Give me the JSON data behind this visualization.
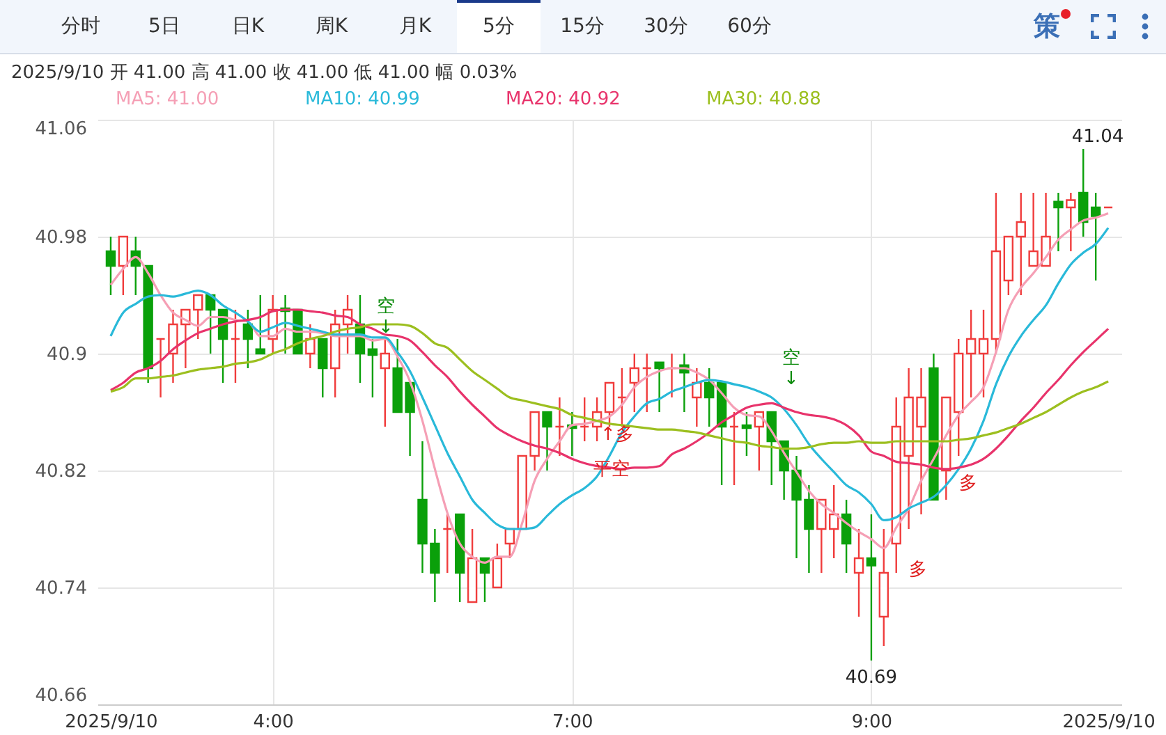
{
  "chart_data": {
    "type": "candlestick",
    "subtitle": "2025/9/10 开 41.00 高 41.00 收 41.00 低 41.00 幅 0.03%",
    "categories": [
      "2025/9/10",
      null,
      null,
      null,
      null,
      null,
      null,
      null,
      null,
      null,
      null,
      null,
      null,
      "4:00",
      null,
      null,
      null,
      null,
      null,
      null,
      null,
      null,
      null,
      null,
      null,
      null,
      null,
      null,
      null,
      null,
      null,
      null,
      null,
      null,
      null,
      null,
      null,
      "7:00",
      null,
      null,
      null,
      null,
      null,
      null,
      null,
      null,
      null,
      null,
      null,
      null,
      null,
      null,
      null,
      null,
      null,
      null,
      null,
      null,
      null,
      null,
      null,
      "9:00",
      null,
      null,
      null,
      null,
      null,
      null,
      null,
      null,
      null,
      null,
      null,
      null,
      null,
      null,
      null,
      null,
      null,
      null,
      "2025/9/10"
    ],
    "ohlc": [
      [
        40.97,
        40.98,
        40.94,
        40.96
      ],
      [
        40.96,
        40.98,
        40.94,
        40.98
      ],
      [
        40.97,
        40.98,
        40.94,
        40.96
      ],
      [
        40.96,
        40.96,
        40.88,
        40.89
      ],
      [
        40.91,
        40.91,
        40.87,
        40.91
      ],
      [
        40.9,
        40.93,
        40.88,
        40.92
      ],
      [
        40.92,
        40.93,
        40.89,
        40.93
      ],
      [
        40.93,
        40.94,
        40.91,
        40.94
      ],
      [
        40.94,
        40.94,
        40.9,
        40.93
      ],
      [
        40.93,
        40.93,
        40.88,
        40.91
      ],
      [
        40.91,
        40.93,
        40.88,
        40.91
      ],
      [
        40.92,
        40.93,
        40.89,
        40.91
      ],
      [
        40.903,
        40.94,
        40.9,
        40.9
      ],
      [
        40.91,
        40.94,
        40.9,
        40.93
      ],
      [
        40.931,
        40.94,
        40.9,
        40.929
      ],
      [
        40.93,
        40.93,
        40.9,
        40.9
      ],
      [
        40.9,
        40.92,
        40.89,
        40.91
      ],
      [
        40.91,
        40.91,
        40.87,
        40.89
      ],
      [
        40.89,
        40.93,
        40.87,
        40.92
      ],
      [
        40.92,
        40.94,
        40.9,
        40.93
      ],
      [
        40.92,
        40.94,
        40.88,
        40.9
      ],
      [
        40.903,
        40.91,
        40.87,
        40.899
      ],
      [
        40.89,
        40.91,
        40.85,
        40.9
      ],
      [
        40.89,
        40.91,
        40.86,
        40.86
      ],
      [
        40.88,
        40.88,
        40.83,
        40.86
      ],
      [
        40.8,
        40.84,
        40.75,
        40.77
      ],
      [
        40.77,
        40.78,
        40.73,
        40.75
      ],
      [
        40.78,
        40.79,
        40.75,
        40.78
      ],
      [
        40.79,
        40.79,
        40.73,
        40.75
      ],
      [
        40.73,
        40.78,
        40.73,
        40.76
      ],
      [
        40.76,
        40.76,
        40.73,
        40.75
      ],
      [
        40.74,
        40.77,
        40.74,
        40.76
      ],
      [
        40.77,
        40.78,
        40.76,
        40.78
      ],
      [
        40.78,
        40.83,
        40.78,
        40.83
      ],
      [
        40.83,
        40.86,
        40.82,
        40.86
      ],
      [
        40.86,
        40.86,
        40.82,
        40.85
      ],
      [
        40.85,
        40.87,
        40.83,
        40.85
      ],
      [
        40.851,
        40.86,
        40.83,
        40.849
      ],
      [
        40.85,
        40.87,
        40.84,
        40.85
      ],
      [
        40.85,
        40.87,
        40.84,
        40.86
      ],
      [
        40.86,
        40.88,
        40.85,
        40.88
      ],
      [
        40.87,
        40.89,
        40.85,
        40.87
      ],
      [
        40.88,
        40.9,
        40.86,
        40.89
      ],
      [
        40.89,
        40.9,
        40.86,
        40.89
      ],
      [
        40.894,
        40.894,
        40.86,
        40.89
      ],
      [
        40.89,
        40.9,
        40.87,
        40.89
      ],
      [
        40.892,
        40.9,
        40.86,
        40.887
      ],
      [
        40.87,
        40.89,
        40.85,
        40.88
      ],
      [
        40.88,
        40.89,
        40.85,
        40.87
      ],
      [
        40.88,
        40.88,
        40.81,
        40.85
      ],
      [
        40.85,
        40.86,
        40.81,
        40.85
      ],
      [
        40.851,
        40.86,
        40.83,
        40.849
      ],
      [
        40.85,
        40.86,
        40.82,
        40.86
      ],
      [
        40.86,
        40.86,
        40.81,
        40.84
      ],
      [
        40.84,
        40.84,
        40.8,
        40.82
      ],
      [
        40.82,
        40.83,
        40.76,
        40.8
      ],
      [
        40.8,
        40.81,
        40.75,
        40.78
      ],
      [
        40.78,
        40.8,
        40.75,
        40.8
      ],
      [
        40.78,
        40.81,
        40.76,
        40.79
      ],
      [
        40.79,
        40.8,
        40.75,
        40.77
      ],
      [
        40.75,
        40.78,
        40.72,
        40.76
      ],
      [
        40.76,
        40.79,
        40.69,
        40.755
      ],
      [
        40.72,
        40.78,
        40.7,
        40.75
      ],
      [
        40.77,
        40.87,
        40.75,
        40.85
      ],
      [
        40.83,
        40.89,
        40.78,
        40.87
      ],
      [
        40.85,
        40.89,
        40.79,
        40.87
      ],
      [
        40.89,
        40.9,
        40.8,
        40.8
      ],
      [
        40.82,
        40.87,
        40.8,
        40.87
      ],
      [
        40.86,
        40.91,
        40.83,
        40.9
      ],
      [
        40.9,
        40.93,
        40.87,
        40.91
      ],
      [
        40.9,
        40.93,
        40.87,
        40.91
      ],
      [
        40.91,
        41.01,
        40.9,
        40.97
      ],
      [
        40.95,
        40.98,
        40.94,
        40.98
      ],
      [
        40.98,
        41.01,
        40.94,
        40.99
      ],
      [
        40.96,
        41.01,
        40.96,
        40.97
      ],
      [
        40.96,
        41.01,
        40.96,
        40.98
      ],
      [
        41.004,
        41.01,
        40.97,
        41.0
      ],
      [
        41.0,
        41.01,
        40.97,
        41.005
      ],
      [
        41.01,
        41.04,
        40.98,
        40.99
      ],
      [
        41.0,
        41.01,
        40.95,
        40.994
      ],
      [
        41.0,
        41.0,
        41.0,
        41.0
      ]
    ],
    "series": [
      {
        "name": "MA5: 41.00",
        "color": "#f59fb5",
        "type": "line",
        "values": [
          40.947,
          40.958,
          40.966,
          40.955,
          40.94,
          40.928,
          40.923,
          40.919,
          40.925,
          40.925,
          40.923,
          40.922,
          40.912,
          40.912,
          40.917,
          40.915,
          40.915,
          40.914,
          40.912,
          40.912,
          40.912,
          40.909,
          40.91,
          40.898,
          40.881,
          40.854,
          40.821,
          40.791,
          40.77,
          40.761,
          40.757,
          40.761,
          40.761,
          40.784,
          40.813,
          40.828,
          40.84,
          40.851,
          40.852,
          40.854,
          40.857,
          40.865,
          40.877,
          40.884,
          40.888,
          40.89,
          40.89,
          40.887,
          40.882,
          40.873,
          40.863,
          40.858,
          40.857,
          40.847,
          40.832,
          40.819,
          40.806,
          40.797,
          40.791,
          40.784,
          40.778,
          40.773,
          40.767,
          40.781,
          40.794,
          40.813,
          40.828,
          40.844,
          40.858,
          40.867,
          40.877,
          40.901,
          40.93,
          40.945,
          40.955,
          40.966,
          40.978,
          40.985,
          40.991,
          40.993,
          40.996
        ]
      },
      {
        "name": "MA10: 40.99",
        "color": "#29b9d9",
        "type": "line",
        "values": [
          40.912,
          40.928,
          40.934,
          40.939,
          40.94,
          40.939,
          40.941,
          40.943,
          40.94,
          40.933,
          40.928,
          40.922,
          40.915,
          40.918,
          40.921,
          40.919,
          40.917,
          40.915,
          40.913,
          40.913,
          40.913,
          40.911,
          40.911,
          40.901,
          40.888,
          40.87,
          40.851,
          40.832,
          40.816,
          40.8,
          40.791,
          40.783,
          40.78,
          40.78,
          40.781,
          40.789,
          40.797,
          40.803,
          40.808,
          40.816,
          40.83,
          40.846,
          40.857,
          40.866,
          40.869,
          40.874,
          40.877,
          40.88,
          40.882,
          40.881,
          40.879,
          40.877,
          40.874,
          40.87,
          40.862,
          40.851,
          40.838,
          40.828,
          40.819,
          40.81,
          40.805,
          40.797,
          40.786,
          40.788,
          40.794,
          40.798,
          40.802,
          40.81,
          40.821,
          40.835,
          40.854,
          40.879,
          40.898,
          40.912,
          40.923,
          40.933,
          40.948,
          40.961,
          40.969,
          40.975,
          40.986
        ]
      },
      {
        "name": "MA20: 40.92",
        "color": "#e8336b",
        "type": "line",
        "values": [
          40.875,
          40.88,
          40.887,
          40.89,
          40.895,
          40.903,
          40.909,
          40.914,
          40.917,
          40.92,
          40.922,
          40.923,
          40.925,
          40.929,
          40.93,
          40.93,
          40.929,
          40.928,
          40.926,
          40.925,
          40.92,
          40.917,
          40.913,
          40.912,
          40.909,
          40.901,
          40.892,
          40.884,
          40.874,
          40.865,
          40.857,
          40.849,
          40.844,
          40.84,
          40.837,
          40.835,
          40.832,
          40.828,
          40.825,
          40.823,
          40.822,
          40.821,
          40.822,
          40.822,
          40.823,
          40.831,
          40.835,
          40.84,
          40.846,
          40.853,
          40.858,
          40.863,
          40.865,
          40.866,
          40.863,
          40.86,
          40.858,
          40.857,
          40.855,
          40.851,
          40.844,
          40.833,
          40.83,
          40.826,
          40.825,
          40.824,
          40.822,
          40.821,
          40.822,
          40.824,
          40.828,
          40.835,
          40.844,
          40.854,
          40.863,
          40.873,
          40.882,
          40.892,
          40.901,
          40.909,
          40.917
        ]
      },
      {
        "name": "MA30: 40.88",
        "color": "#9cbf1f",
        "type": "line",
        "values": [
          40.874,
          40.877,
          40.883,
          40.883,
          40.884,
          40.885,
          40.887,
          40.889,
          40.89,
          40.891,
          40.893,
          40.894,
          40.896,
          40.9,
          40.903,
          40.907,
          40.91,
          40.912,
          40.915,
          40.917,
          40.918,
          40.92,
          40.92,
          40.92,
          40.919,
          40.914,
          40.907,
          40.904,
          40.896,
          40.888,
          40.882,
          40.876,
          40.87,
          40.868,
          40.866,
          40.864,
          40.862,
          40.858,
          40.856,
          40.854,
          40.852,
          40.851,
          40.85,
          40.849,
          40.848,
          40.848,
          40.847,
          40.846,
          40.844,
          40.842,
          40.84,
          40.839,
          40.837,
          40.836,
          40.835,
          40.835,
          40.836,
          40.838,
          40.839,
          40.839,
          40.84,
          40.839,
          40.839,
          40.84,
          40.84,
          40.84,
          40.84,
          40.84,
          40.841,
          40.842,
          40.844,
          40.846,
          40.849,
          40.852,
          40.856,
          40.86,
          40.865,
          40.87,
          40.874,
          40.877,
          40.881
        ]
      }
    ],
    "ylim": [
      40.66,
      41.06
    ],
    "yticks": [
      40.66,
      40.74,
      40.82,
      40.9,
      40.98,
      41.06
    ],
    "grid": true,
    "legend": "top left",
    "annotations": [
      "分时",
      "5日",
      "日K",
      "周K",
      "月K",
      "5分",
      "15分",
      "30分",
      "60分",
      "策",
      "41.04",
      "空\n↓",
      "↑多",
      "平空",
      "空\n↓",
      "多",
      "多",
      {
        "text": "40.69",
        "x": "9:00",
        "y": 40.69
      }
    ]
  }
}
